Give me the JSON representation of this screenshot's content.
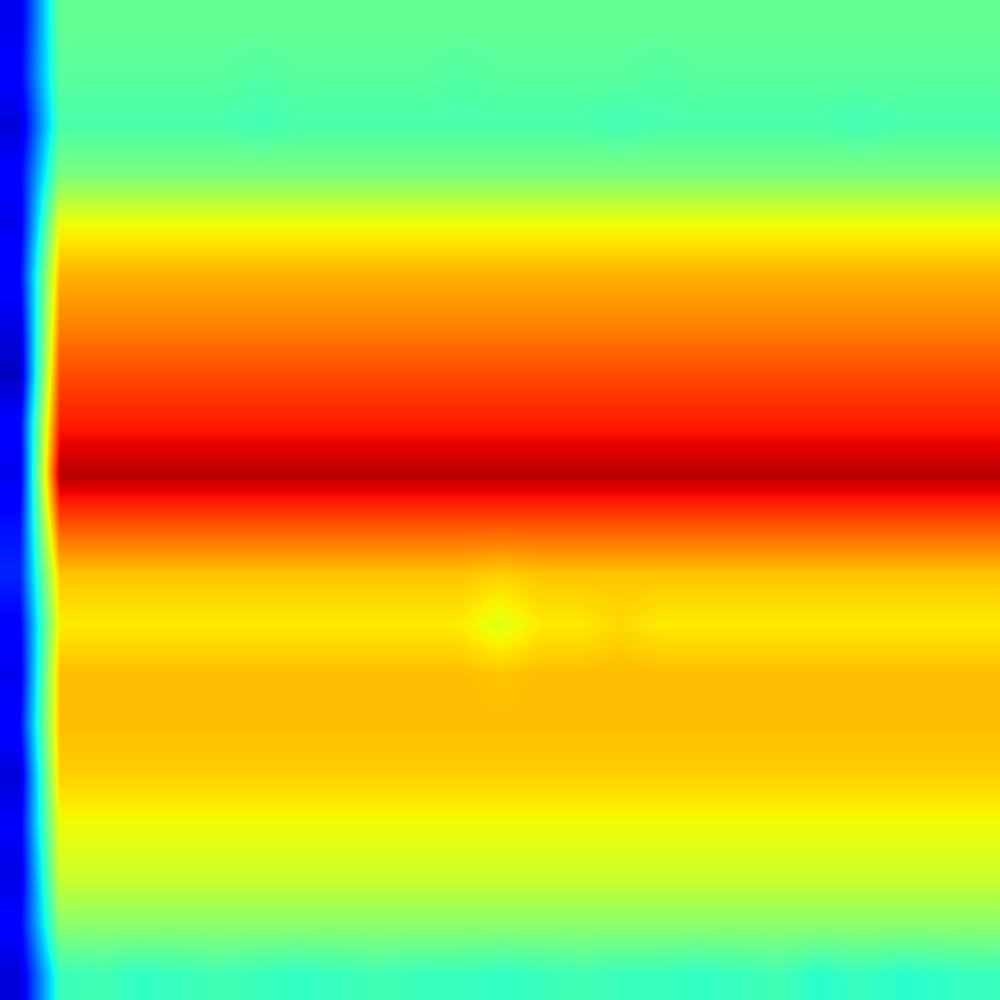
{
  "chart_data": {
    "type": "heatmap",
    "color": "jet",
    "tick_labels": false,
    "color_range": [
      0,
      1
    ],
    "cells": [
      [
        0.1,
        0.47,
        0.47,
        0.47,
        0.47,
        0.47,
        0.47,
        0.47,
        0.47,
        0.47,
        0.47,
        0.47,
        0.47,
        0.47,
        0.47,
        0.47,
        0.47,
        0.47,
        0.47,
        0.47,
        0.47,
        0.47,
        0.47,
        0.47,
        0.47
      ],
      [
        0.12,
        0.46,
        0.46,
        0.46,
        0.46,
        0.46,
        0.45,
        0.46,
        0.46,
        0.46,
        0.46,
        0.45,
        0.46,
        0.46,
        0.46,
        0.46,
        0.45,
        0.46,
        0.46,
        0.46,
        0.46,
        0.46,
        0.46,
        0.46,
        0.46
      ],
      [
        0.08,
        0.44,
        0.44,
        0.44,
        0.44,
        0.44,
        0.43,
        0.44,
        0.44,
        0.44,
        0.44,
        0.44,
        0.44,
        0.44,
        0.44,
        0.43,
        0.44,
        0.44,
        0.44,
        0.44,
        0.44,
        0.43,
        0.44,
        0.44,
        0.44
      ],
      [
        0.12,
        0.5,
        0.5,
        0.5,
        0.5,
        0.5,
        0.5,
        0.5,
        0.5,
        0.5,
        0.5,
        0.5,
        0.5,
        0.5,
        0.5,
        0.5,
        0.5,
        0.5,
        0.5,
        0.5,
        0.5,
        0.5,
        0.5,
        0.5,
        0.5
      ],
      [
        0.1,
        0.64,
        0.64,
        0.64,
        0.64,
        0.64,
        0.64,
        0.64,
        0.64,
        0.64,
        0.64,
        0.64,
        0.64,
        0.64,
        0.64,
        0.64,
        0.64,
        0.64,
        0.64,
        0.64,
        0.64,
        0.64,
        0.64,
        0.64,
        0.64
      ],
      [
        0.13,
        0.72,
        0.72,
        0.72,
        0.72,
        0.72,
        0.72,
        0.72,
        0.72,
        0.72,
        0.72,
        0.72,
        0.72,
        0.72,
        0.72,
        0.72,
        0.72,
        0.72,
        0.72,
        0.72,
        0.72,
        0.72,
        0.72,
        0.72,
        0.72
      ],
      [
        0.09,
        0.77,
        0.77,
        0.77,
        0.77,
        0.77,
        0.77,
        0.77,
        0.77,
        0.77,
        0.77,
        0.77,
        0.77,
        0.77,
        0.77,
        0.77,
        0.77,
        0.77,
        0.77,
        0.77,
        0.77,
        0.77,
        0.77,
        0.77,
        0.77
      ],
      [
        0.06,
        0.83,
        0.83,
        0.83,
        0.83,
        0.83,
        0.83,
        0.83,
        0.83,
        0.83,
        0.83,
        0.83,
        0.83,
        0.83,
        0.83,
        0.83,
        0.83,
        0.83,
        0.83,
        0.83,
        0.83,
        0.83,
        0.83,
        0.83,
        0.83
      ],
      [
        0.12,
        0.88,
        0.88,
        0.88,
        0.88,
        0.88,
        0.88,
        0.88,
        0.88,
        0.88,
        0.88,
        0.88,
        0.88,
        0.88,
        0.88,
        0.88,
        0.88,
        0.88,
        0.88,
        0.88,
        0.88,
        0.88,
        0.88,
        0.88,
        0.88
      ],
      [
        0.1,
        0.95,
        0.95,
        0.95,
        0.95,
        0.95,
        0.95,
        0.95,
        0.95,
        0.95,
        0.95,
        0.95,
        0.95,
        0.95,
        0.95,
        0.95,
        0.95,
        0.95,
        0.95,
        0.95,
        0.95,
        0.95,
        0.95,
        0.95,
        0.95
      ],
      [
        0.14,
        0.82,
        0.82,
        0.82,
        0.82,
        0.82,
        0.82,
        0.82,
        0.82,
        0.82,
        0.82,
        0.82,
        0.82,
        0.82,
        0.82,
        0.82,
        0.82,
        0.82,
        0.82,
        0.82,
        0.82,
        0.82,
        0.82,
        0.82,
        0.82
      ],
      [
        0.16,
        0.7,
        0.7,
        0.7,
        0.7,
        0.7,
        0.7,
        0.7,
        0.7,
        0.7,
        0.7,
        0.7,
        0.69,
        0.7,
        0.7,
        0.7,
        0.7,
        0.7,
        0.7,
        0.7,
        0.7,
        0.7,
        0.7,
        0.7,
        0.7
      ],
      [
        0.12,
        0.66,
        0.66,
        0.66,
        0.66,
        0.66,
        0.66,
        0.66,
        0.66,
        0.66,
        0.66,
        0.66,
        0.62,
        0.66,
        0.66,
        0.68,
        0.66,
        0.66,
        0.66,
        0.66,
        0.66,
        0.66,
        0.66,
        0.66,
        0.66
      ],
      [
        0.1,
        0.71,
        0.71,
        0.71,
        0.71,
        0.71,
        0.71,
        0.71,
        0.71,
        0.71,
        0.71,
        0.71,
        0.7,
        0.71,
        0.71,
        0.71,
        0.71,
        0.71,
        0.71,
        0.71,
        0.71,
        0.71,
        0.71,
        0.71,
        0.71
      ],
      [
        0.13,
        0.71,
        0.71,
        0.71,
        0.71,
        0.71,
        0.71,
        0.71,
        0.71,
        0.71,
        0.71,
        0.71,
        0.71,
        0.71,
        0.71,
        0.71,
        0.71,
        0.71,
        0.71,
        0.71,
        0.71,
        0.71,
        0.71,
        0.71,
        0.71
      ],
      [
        0.08,
        0.69,
        0.69,
        0.69,
        0.69,
        0.69,
        0.69,
        0.69,
        0.69,
        0.69,
        0.69,
        0.69,
        0.69,
        0.69,
        0.69,
        0.69,
        0.69,
        0.69,
        0.69,
        0.69,
        0.69,
        0.69,
        0.69,
        0.69,
        0.69
      ],
      [
        0.11,
        0.64,
        0.64,
        0.64,
        0.64,
        0.64,
        0.64,
        0.64,
        0.64,
        0.64,
        0.64,
        0.64,
        0.64,
        0.64,
        0.64,
        0.64,
        0.64,
        0.64,
        0.64,
        0.64,
        0.64,
        0.64,
        0.64,
        0.64,
        0.64
      ],
      [
        0.09,
        0.6,
        0.6,
        0.6,
        0.6,
        0.6,
        0.6,
        0.6,
        0.6,
        0.6,
        0.6,
        0.6,
        0.6,
        0.6,
        0.6,
        0.6,
        0.6,
        0.6,
        0.6,
        0.6,
        0.6,
        0.6,
        0.6,
        0.6,
        0.6
      ],
      [
        0.12,
        0.52,
        0.52,
        0.52,
        0.52,
        0.52,
        0.52,
        0.52,
        0.52,
        0.52,
        0.52,
        0.52,
        0.52,
        0.52,
        0.52,
        0.52,
        0.52,
        0.52,
        0.52,
        0.52,
        0.52,
        0.52,
        0.52,
        0.52,
        0.52
      ],
      [
        0.08,
        0.42,
        0.43,
        0.41,
        0.42,
        0.43,
        0.42,
        0.41,
        0.42,
        0.43,
        0.42,
        0.42,
        0.41,
        0.42,
        0.43,
        0.42,
        0.42,
        0.41,
        0.42,
        0.43,
        0.4,
        0.42,
        0.4,
        0.41,
        0.42
      ]
    ]
  }
}
